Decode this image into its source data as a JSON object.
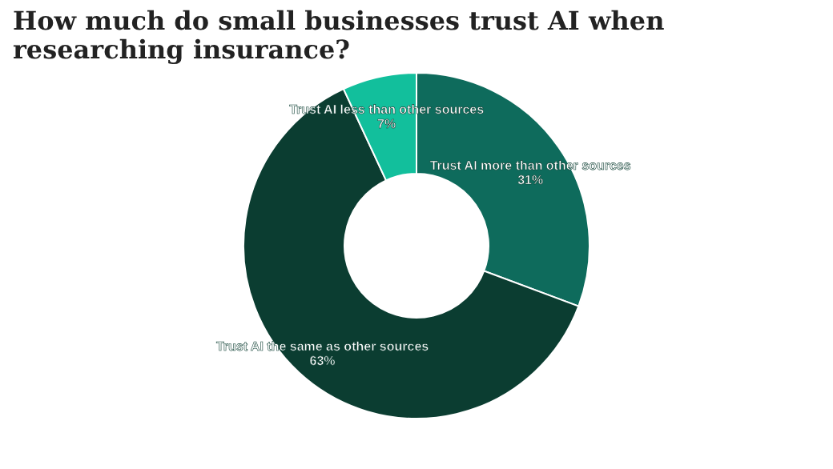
{
  "chart_data": {
    "type": "donut",
    "title": "How much do small businesses trust AI when researching insurance?",
    "categories": [
      "Trust AI more than other sources",
      "Trust AI the same as other sources",
      "Trust AI less than other sources"
    ],
    "values": [
      31,
      63,
      7
    ],
    "value_labels": [
      "31%",
      "63%",
      "7%"
    ],
    "colors": [
      "#0e6b5c",
      "#0b3d31",
      "#12bf9c"
    ],
    "legend": false
  }
}
